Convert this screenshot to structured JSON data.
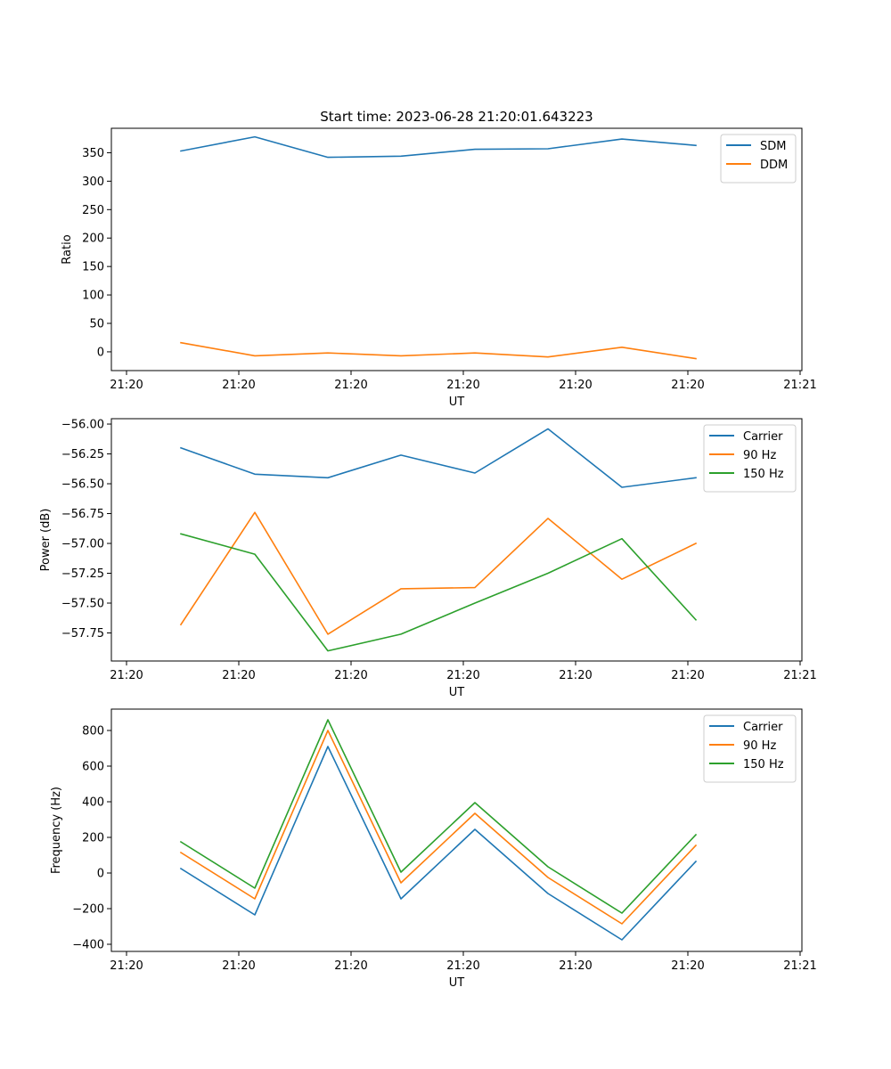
{
  "figure": {
    "title": "Start time: 2023-06-28 21:20:01.643223"
  },
  "colors": {
    "blue": "#1f77b4",
    "orange": "#ff7f0e",
    "green": "#2ca02c"
  },
  "chart_data": [
    {
      "type": "line",
      "title": "Start time: 2023-06-28 21:20:01.643223",
      "xlabel": "UT",
      "ylabel": "Ratio",
      "x_tick_labels": [
        "21:20",
        "21:20",
        "21:20",
        "21:20",
        "21:20",
        "21:20",
        "21:21"
      ],
      "ylim": [
        -33,
        393
      ],
      "y_ticks": [
        0,
        50,
        100,
        150,
        200,
        250,
        300,
        350
      ],
      "legend_position": "top-right",
      "grid": false,
      "series": [
        {
          "name": "SDM",
          "color": "#1f77b4",
          "values": [
            353,
            378,
            342,
            344,
            356,
            357,
            374,
            363
          ]
        },
        {
          "name": "DDM",
          "color": "#ff7f0e",
          "values": [
            16,
            -7,
            -2,
            -7,
            -2,
            -9,
            8,
            -12
          ]
        }
      ]
    },
    {
      "type": "line",
      "title": "",
      "xlabel": "UT",
      "ylabel": "Power (dB)",
      "x_tick_labels": [
        "21:20",
        "21:20",
        "21:20",
        "21:20",
        "21:20",
        "21:20",
        "21:21"
      ],
      "ylim": [
        -57.985,
        -55.955
      ],
      "y_ticks": [
        -57.75,
        -57.5,
        -57.25,
        -57.0,
        -56.75,
        -56.5,
        -56.25,
        -56.0
      ],
      "legend_position": "top-right",
      "grid": false,
      "series": [
        {
          "name": "Carrier",
          "color": "#1f77b4",
          "values": [
            -56.2,
            -56.42,
            -56.45,
            -56.26,
            -56.41,
            -56.04,
            -56.53,
            -56.45
          ]
        },
        {
          "name": "90 Hz",
          "color": "#ff7f0e",
          "values": [
            -57.68,
            -56.74,
            -57.76,
            -57.38,
            -57.37,
            -56.79,
            -57.3,
            -57.0
          ]
        },
        {
          "name": "150 Hz",
          "color": "#2ca02c",
          "values": [
            -56.92,
            -57.09,
            -57.9,
            -57.76,
            -57.5,
            -57.25,
            -56.96,
            -57.64
          ]
        }
      ]
    },
    {
      "type": "line",
      "title": "",
      "xlabel": "UT",
      "ylabel": "Frequency (Hz)",
      "x_tick_labels": [
        "21:20",
        "21:20",
        "21:20",
        "21:20",
        "21:20",
        "21:20",
        "21:21"
      ],
      "ylim": [
        -440,
        920
      ],
      "y_ticks": [
        -400,
        -200,
        0,
        200,
        400,
        600,
        800
      ],
      "legend_position": "top-right",
      "grid": false,
      "series": [
        {
          "name": "Carrier",
          "color": "#1f77b4",
          "values": [
            25,
            -235,
            710,
            -145,
            245,
            -115,
            -375,
            65
          ]
        },
        {
          "name": "90 Hz",
          "color": "#ff7f0e",
          "values": [
            115,
            -145,
            800,
            -55,
            335,
            -25,
            -285,
            155
          ]
        },
        {
          "name": "150 Hz",
          "color": "#2ca02c",
          "values": [
            175,
            -85,
            860,
            5,
            395,
            35,
            -225,
            215
          ]
        }
      ]
    }
  ]
}
